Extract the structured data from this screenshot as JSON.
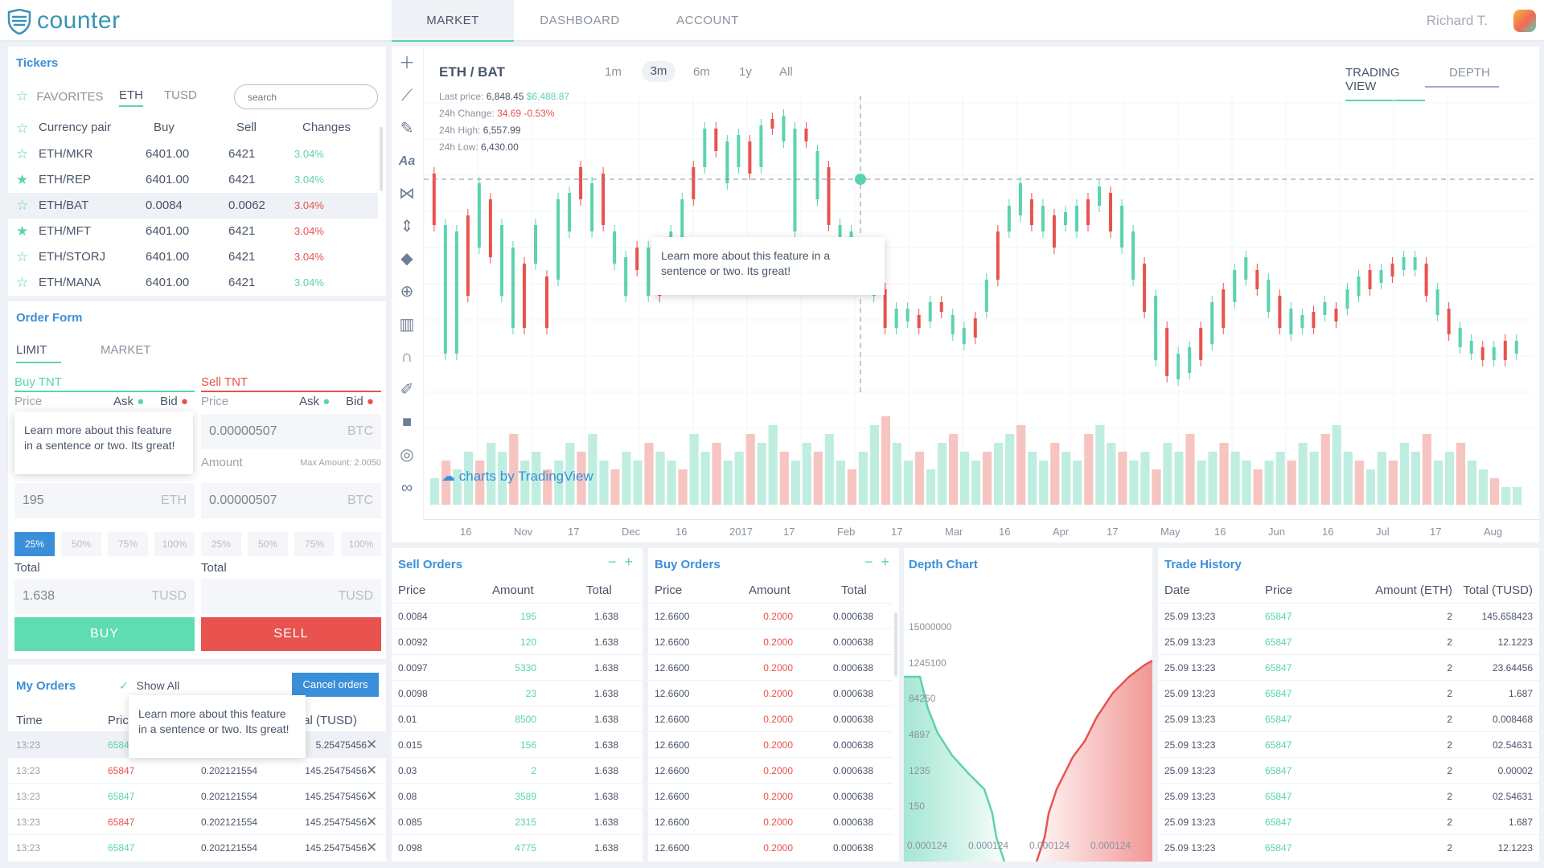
{
  "app": {
    "name": "counter"
  },
  "nav": {
    "tabs": [
      "MARKET",
      "DASHBOARD",
      "ACCOUNT"
    ],
    "user": "Richard T."
  },
  "tickers": {
    "title": "Tickers",
    "tabs": [
      "FAVORITES",
      "ETH",
      "TUSD"
    ],
    "search_placeholder": "search",
    "columns": [
      "Currency pair",
      "Buy",
      "Sell",
      "Changes"
    ],
    "rows": [
      {
        "pair": "ETH/MKR",
        "buy": "6401.00",
        "sell": "6421",
        "change": "3.04%",
        "dir": "up",
        "fav": false
      },
      {
        "pair": "ETH/REP",
        "buy": "6401.00",
        "sell": "6421",
        "change": "3.04%",
        "dir": "up",
        "fav": true
      },
      {
        "pair": "ETH/BAT",
        "buy": "0.0084",
        "sell": "0.0062",
        "change": "3.04%",
        "dir": "down",
        "fav": false
      },
      {
        "pair": "ETH/MFT",
        "buy": "6401.00",
        "sell": "6421",
        "change": "3.04%",
        "dir": "down",
        "fav": true
      },
      {
        "pair": "ETH/STORJ",
        "buy": "6401.00",
        "sell": "6421",
        "change": "3.04%",
        "dir": "down",
        "fav": false
      },
      {
        "pair": "ETH/MANA",
        "buy": "6401.00",
        "sell": "6421",
        "change": "3.04%",
        "dir": "up",
        "fav": false
      }
    ]
  },
  "order_form": {
    "title": "Order Form",
    "tabs": [
      "LIMIT",
      "MARKET"
    ],
    "buy": {
      "label": "Buy TNT",
      "price_label": "Price",
      "ask": "Ask",
      "bid": "Bid",
      "amount": "195",
      "amount_unit": "ETH",
      "percents": [
        "25%",
        "50%",
        "75%",
        "100%"
      ],
      "total_label": "Total",
      "total": "1.638",
      "total_unit": "TUSD",
      "button": "BUY"
    },
    "sell": {
      "label": "Sell TNT",
      "price_label": "Price",
      "ask": "Ask",
      "bid": "Bid",
      "price": "0.00000507",
      "price_unit": "BTC",
      "amount_label": "Amount",
      "max_amount": "Max Amount: 2.0050",
      "amount": "0.00000507",
      "amount_unit": "BTC",
      "percents": [
        "25%",
        "50%",
        "75%",
        "100%"
      ],
      "total_label": "Total",
      "total_unit": "TUSD",
      "button": "SELL"
    },
    "tooltip": "Learn more about this feature in a sentence or two. Its great!"
  },
  "my_orders": {
    "title": "My Orders",
    "show_all": "Show All",
    "cancel": "Cancel orders",
    "columns": [
      "Time",
      "Price",
      "Total (TUSD)"
    ],
    "col_time": "Time",
    "col_price_fragment": "Pric",
    "col_total_fragment": "tal (TUSD)",
    "tooltip": "Learn more about this feature in a sentence or two. Its great!",
    "rows": [
      {
        "time": "13:23",
        "price": "6584",
        "amount": "",
        "total": "5.25475456",
        "dir": "up"
      },
      {
        "time": "13:23",
        "price": "65847",
        "amount": "0.202121554",
        "total": "145.25475456",
        "dir": "down"
      },
      {
        "time": "13:23",
        "price": "65847",
        "amount": "0.202121554",
        "total": "145.25475456",
        "dir": "up"
      },
      {
        "time": "13:23",
        "price": "65847",
        "amount": "0.202121554",
        "total": "145.25475456",
        "dir": "down"
      },
      {
        "time": "13:23",
        "price": "65847",
        "amount": "0.202121554",
        "total": "145.25475456",
        "dir": "up"
      }
    ]
  },
  "chart": {
    "pair": "ETH / BAT",
    "timeframes": [
      "1m",
      "3m",
      "6m",
      "1y",
      "All"
    ],
    "active_timeframe": "3m",
    "last_price_label": "Last price:",
    "last_price": "6,848.45",
    "last_price_alt": "$6,488.87",
    "change_label": "24h Change:",
    "change": "34.69 -0.53%",
    "high_label": "24h High:",
    "high": "6,557.99",
    "low_label": "24h Low:",
    "low": "6,430.00",
    "views": [
      "TRADING VIEW",
      "DEPTH"
    ],
    "watermark": "charts by TradingView",
    "tooltip": "Learn more about this feature in a sentence or two. Its great!",
    "x_ticks": [
      "16",
      "Nov",
      "17",
      "Dec",
      "16",
      "2017",
      "17",
      "Feb",
      "17",
      "Mar",
      "16",
      "Apr",
      "17",
      "May",
      "16",
      "Jun",
      "16",
      "Jul",
      "17",
      "Aug"
    ],
    "up_color": "#5bd3ae",
    "down_color": "#e8524f"
  },
  "chart_data": {
    "type": "candlestick",
    "x_ticks": [
      "16",
      "Nov",
      "17",
      "Dec",
      "16",
      "2017",
      "17",
      "Feb",
      "17",
      "Mar",
      "16",
      "Apr",
      "17",
      "May",
      "16",
      "Jun",
      "16",
      "Jul",
      "17",
      "Aug"
    ],
    "candles": [
      [
        0.62,
        0.78
      ],
      [
        0.22,
        0.62
      ],
      [
        0.22,
        0.6
      ],
      [
        0.4,
        0.65
      ],
      [
        0.55,
        0.75
      ],
      [
        0.52,
        0.7
      ],
      [
        0.4,
        0.62
      ],
      [
        0.3,
        0.55
      ],
      [
        0.3,
        0.5
      ],
      [
        0.5,
        0.62
      ],
      [
        0.3,
        0.46
      ],
      [
        0.45,
        0.7
      ],
      [
        0.6,
        0.72
      ],
      [
        0.7,
        0.8
      ],
      [
        0.6,
        0.75
      ],
      [
        0.62,
        0.78
      ],
      [
        0.5,
        0.6
      ],
      [
        0.4,
        0.52
      ],
      [
        0.48,
        0.55
      ],
      [
        0.4,
        0.55
      ],
      [
        0.4,
        0.5
      ],
      [
        0.5,
        0.6
      ],
      [
        0.56,
        0.7
      ],
      [
        0.7,
        0.8
      ],
      [
        0.8,
        0.92
      ],
      [
        0.85,
        0.92
      ],
      [
        0.75,
        0.88
      ],
      [
        0.8,
        0.9
      ],
      [
        0.78,
        0.88
      ],
      [
        0.8,
        0.93
      ],
      [
        0.92,
        0.95
      ],
      [
        0.88,
        0.96
      ],
      [
        0.6,
        0.92
      ],
      [
        0.88,
        0.92
      ],
      [
        0.7,
        0.85
      ],
      [
        0.62,
        0.8
      ],
      [
        0.55,
        0.62
      ],
      [
        0.5,
        0.6
      ],
      [
        0.48,
        0.55
      ],
      [
        0.4,
        0.5
      ],
      [
        0.3,
        0.42
      ],
      [
        0.3,
        0.36
      ],
      [
        0.32,
        0.36
      ],
      [
        0.3,
        0.34
      ],
      [
        0.32,
        0.38
      ],
      [
        0.35,
        0.38
      ],
      [
        0.28,
        0.34
      ],
      [
        0.25,
        0.3
      ],
      [
        0.27,
        0.33
      ],
      [
        0.35,
        0.45
      ],
      [
        0.45,
        0.6
      ],
      [
        0.6,
        0.68
      ],
      [
        0.65,
        0.75
      ],
      [
        0.62,
        0.7
      ],
      [
        0.6,
        0.68
      ],
      [
        0.55,
        0.65
      ],
      [
        0.62,
        0.66
      ],
      [
        0.6,
        0.68
      ],
      [
        0.62,
        0.7
      ],
      [
        0.68,
        0.74
      ],
      [
        0.6,
        0.72
      ],
      [
        0.55,
        0.68
      ],
      [
        0.45,
        0.6
      ],
      [
        0.35,
        0.5
      ],
      [
        0.2,
        0.4
      ],
      [
        0.15,
        0.3
      ],
      [
        0.14,
        0.22
      ],
      [
        0.16,
        0.24
      ],
      [
        0.2,
        0.3
      ],
      [
        0.25,
        0.38
      ],
      [
        0.3,
        0.42
      ],
      [
        0.38,
        0.48
      ],
      [
        0.45,
        0.52
      ],
      [
        0.42,
        0.48
      ],
      [
        0.35,
        0.45
      ],
      [
        0.3,
        0.4
      ],
      [
        0.28,
        0.36
      ],
      [
        0.3,
        0.34
      ],
      [
        0.3,
        0.35
      ],
      [
        0.34,
        0.38
      ],
      [
        0.32,
        0.36
      ],
      [
        0.36,
        0.42
      ],
      [
        0.4,
        0.46
      ],
      [
        0.42,
        0.48
      ],
      [
        0.44,
        0.48
      ],
      [
        0.46,
        0.5
      ],
      [
        0.48,
        0.52
      ],
      [
        0.48,
        0.52
      ],
      [
        0.4,
        0.5
      ],
      [
        0.34,
        0.42
      ],
      [
        0.28,
        0.36
      ],
      [
        0.24,
        0.3
      ],
      [
        0.22,
        0.26
      ],
      [
        0.2,
        0.24
      ],
      [
        0.2,
        0.24
      ],
      [
        0.2,
        0.26
      ],
      [
        0.22,
        0.26
      ]
    ],
    "volumes": [
      0.3,
      0.5,
      0.4,
      0.6,
      0.5,
      0.7,
      0.6,
      0.8,
      0.5,
      0.6,
      0.4,
      0.5,
      0.7,
      0.6,
      0.8,
      0.5,
      0.4,
      0.6,
      0.5,
      0.7,
      0.6,
      0.5,
      0.4,
      0.8,
      0.6,
      0.7,
      0.5,
      0.6,
      0.8,
      0.7,
      0.9,
      0.6,
      0.5,
      0.7,
      0.6,
      0.8,
      0.5,
      0.4,
      0.6,
      0.9,
      1.0,
      0.7,
      0.5,
      0.6,
      0.4,
      0.7,
      0.8,
      0.6,
      0.5,
      0.6,
      0.7,
      0.8,
      0.9,
      0.6,
      0.5,
      0.7,
      0.6,
      0.5,
      0.8,
      0.9,
      0.7,
      0.6,
      0.5,
      0.6,
      0.4,
      0.7,
      0.6,
      0.8,
      0.5,
      0.6,
      0.7,
      0.6,
      0.5,
      0.4,
      0.5,
      0.6,
      0.5,
      0.7,
      0.6,
      0.8,
      0.9,
      0.6,
      0.5,
      0.4,
      0.6,
      0.5,
      0.7,
      0.6,
      0.8,
      0.5,
      0.6,
      0.7,
      0.5,
      0.4,
      0.3,
      0.2,
      0.2
    ]
  },
  "sell_orders": {
    "title": "Sell Orders",
    "columns": [
      "Price",
      "Amount",
      "Total"
    ],
    "rows": [
      {
        "price": "0.0084",
        "amount": "195",
        "total": "1.638"
      },
      {
        "price": "0.0092",
        "amount": "120",
        "total": "1.638"
      },
      {
        "price": "0.0097",
        "amount": "5330",
        "total": "1.638"
      },
      {
        "price": "0.0098",
        "amount": "23",
        "total": "1.638"
      },
      {
        "price": "0.01",
        "amount": "8500",
        "total": "1.638"
      },
      {
        "price": "0.015",
        "amount": "156",
        "total": "1.638"
      },
      {
        "price": "0.03",
        "amount": "2",
        "total": "1.638"
      },
      {
        "price": "0.08",
        "amount": "3589",
        "total": "1.638"
      },
      {
        "price": "0.085",
        "amount": "2315",
        "total": "1.638"
      },
      {
        "price": "0.098",
        "amount": "4775",
        "total": "1.638"
      }
    ]
  },
  "buy_orders": {
    "title": "Buy Orders",
    "columns": [
      "Price",
      "Amount",
      "Total"
    ],
    "rows": [
      {
        "price": "12.6600",
        "amount": "0.2000",
        "total": "0.000638"
      },
      {
        "price": "12.6600",
        "amount": "0.2000",
        "total": "0.000638"
      },
      {
        "price": "12.6600",
        "amount": "0.2000",
        "total": "0.000638"
      },
      {
        "price": "12.6600",
        "amount": "0.2000",
        "total": "0.000638"
      },
      {
        "price": "12.6600",
        "amount": "0.2000",
        "total": "0.000638"
      },
      {
        "price": "12.6600",
        "amount": "0.2000",
        "total": "0.000638"
      },
      {
        "price": "12.6600",
        "amount": "0.2000",
        "total": "0.000638"
      },
      {
        "price": "12.6600",
        "amount": "0.2000",
        "total": "0.000638"
      },
      {
        "price": "12.6600",
        "amount": "0.2000",
        "total": "0.000638"
      },
      {
        "price": "12.6600",
        "amount": "0.2000",
        "total": "0.000638"
      }
    ]
  },
  "depth_chart": {
    "title": "Depth Chart",
    "y_labels": [
      "15000000",
      "1245100",
      "84250",
      "4897",
      "1235",
      "150"
    ],
    "x_labels": [
      "0.000124",
      "0.000124",
      "0.000124",
      "0.000124"
    ]
  },
  "trade_history": {
    "title": "Trade History",
    "columns": [
      "Date",
      "Price",
      "Amount (ETH)",
      "Total (TUSD)"
    ],
    "rows": [
      {
        "date": "25.09 13:23",
        "price": "65847",
        "amount": "2",
        "total": "145.658423"
      },
      {
        "date": "25.09 13:23",
        "price": "65847",
        "amount": "2",
        "total": "12.1223"
      },
      {
        "date": "25.09 13:23",
        "price": "65847",
        "amount": "2",
        "total": "23.64456"
      },
      {
        "date": "25.09 13:23",
        "price": "65847",
        "amount": "2",
        "total": "1.687"
      },
      {
        "date": "25.09 13:23",
        "price": "65847",
        "amount": "2",
        "total": "0.008468"
      },
      {
        "date": "25.09 13:23",
        "price": "65847",
        "amount": "2",
        "total": "02.54631"
      },
      {
        "date": "25.09 13:23",
        "price": "65847",
        "amount": "2",
        "total": "0.00002"
      },
      {
        "date": "25.09 13:23",
        "price": "65847",
        "amount": "2",
        "total": "02.54631"
      },
      {
        "date": "25.09 13:23",
        "price": "65847",
        "amount": "2",
        "total": "1.687"
      },
      {
        "date": "25.09 13:23",
        "price": "65847",
        "amount": "2",
        "total": "12.1223"
      }
    ]
  }
}
